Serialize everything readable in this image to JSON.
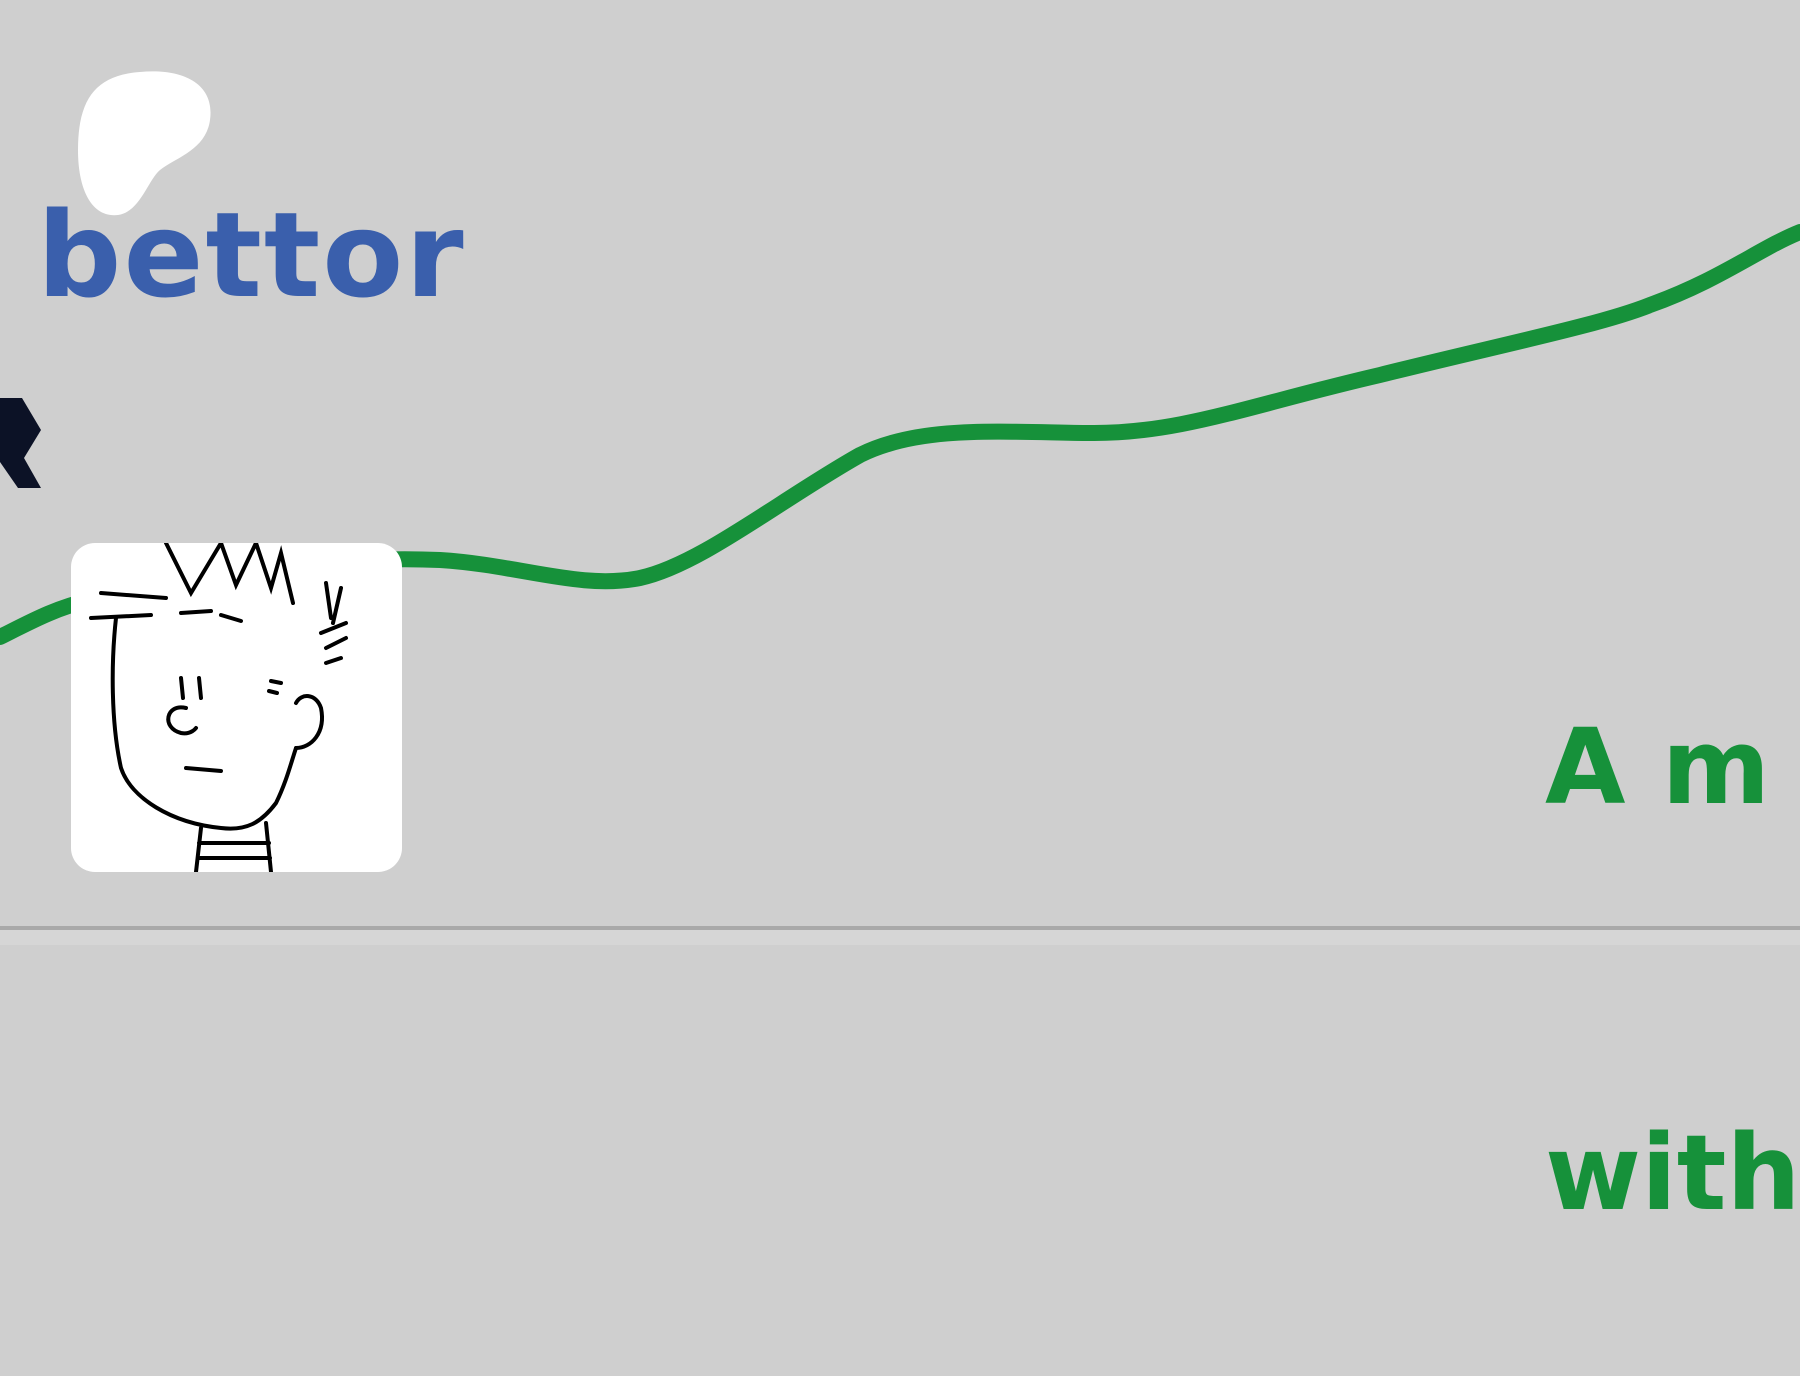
{
  "header": {
    "brand_name": "bettor",
    "logo_icon": "white-blob-logo",
    "tagline_line1": "A m",
    "tagline_line2": "with"
  },
  "colors": {
    "background": "#cfcfcf",
    "brand": "#3a5fac",
    "line": "#16913a",
    "tagline": "#16913a",
    "mark": "#0c1226"
  },
  "avatar": {
    "icon": "cartoon-boy-avatar"
  }
}
